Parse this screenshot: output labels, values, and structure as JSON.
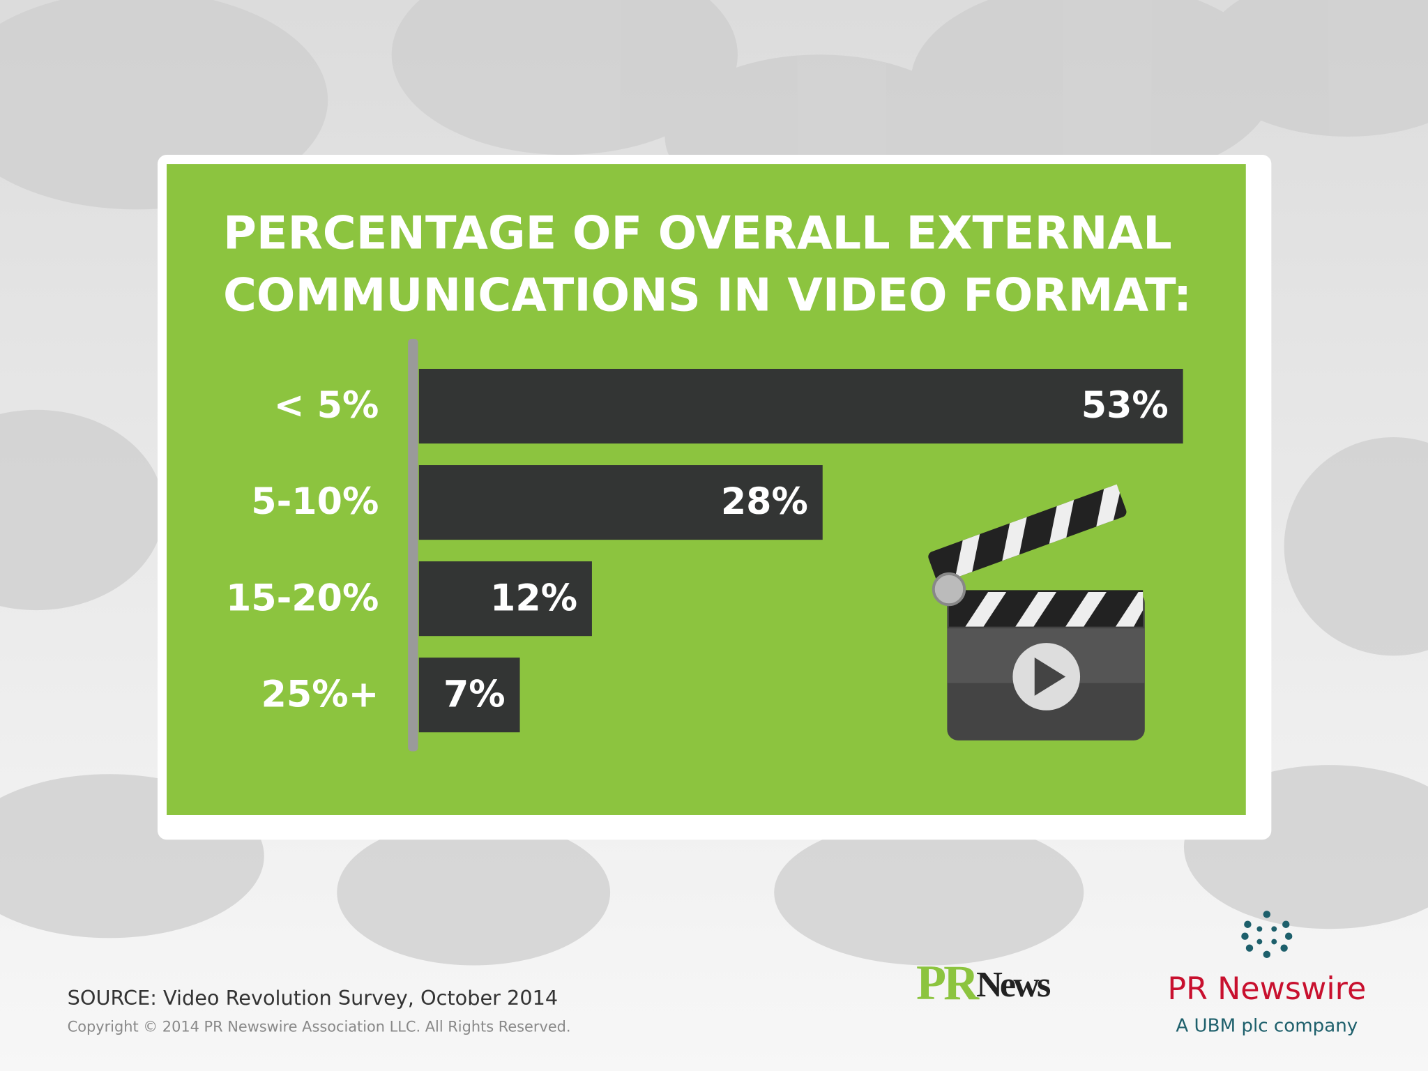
{
  "chart_data": {
    "type": "hbar",
    "title": "PERCENTAGE OF OVERALL EXTERNAL\nCOMMUNICATIONS IN VIDEO FORMAT:",
    "categories": [
      "< 5%",
      "5-10%",
      "15-20%",
      "25%+"
    ],
    "values": [
      53,
      28,
      12,
      7
    ],
    "value_labels": [
      "53%",
      "28%",
      "12%",
      "7%"
    ],
    "color": "#333534"
  },
  "footer": {
    "source": "SOURCE: Video Revolution Survey, October 2014",
    "copyright": "Copyright © 2014 PR Newswire Association LLC. All Rights Reserved.",
    "pr_news_logo": {
      "pr": "PR",
      "news": "News"
    },
    "pr_newswire_logo": "PR Newswire",
    "tagline": "A UBM plc company"
  }
}
